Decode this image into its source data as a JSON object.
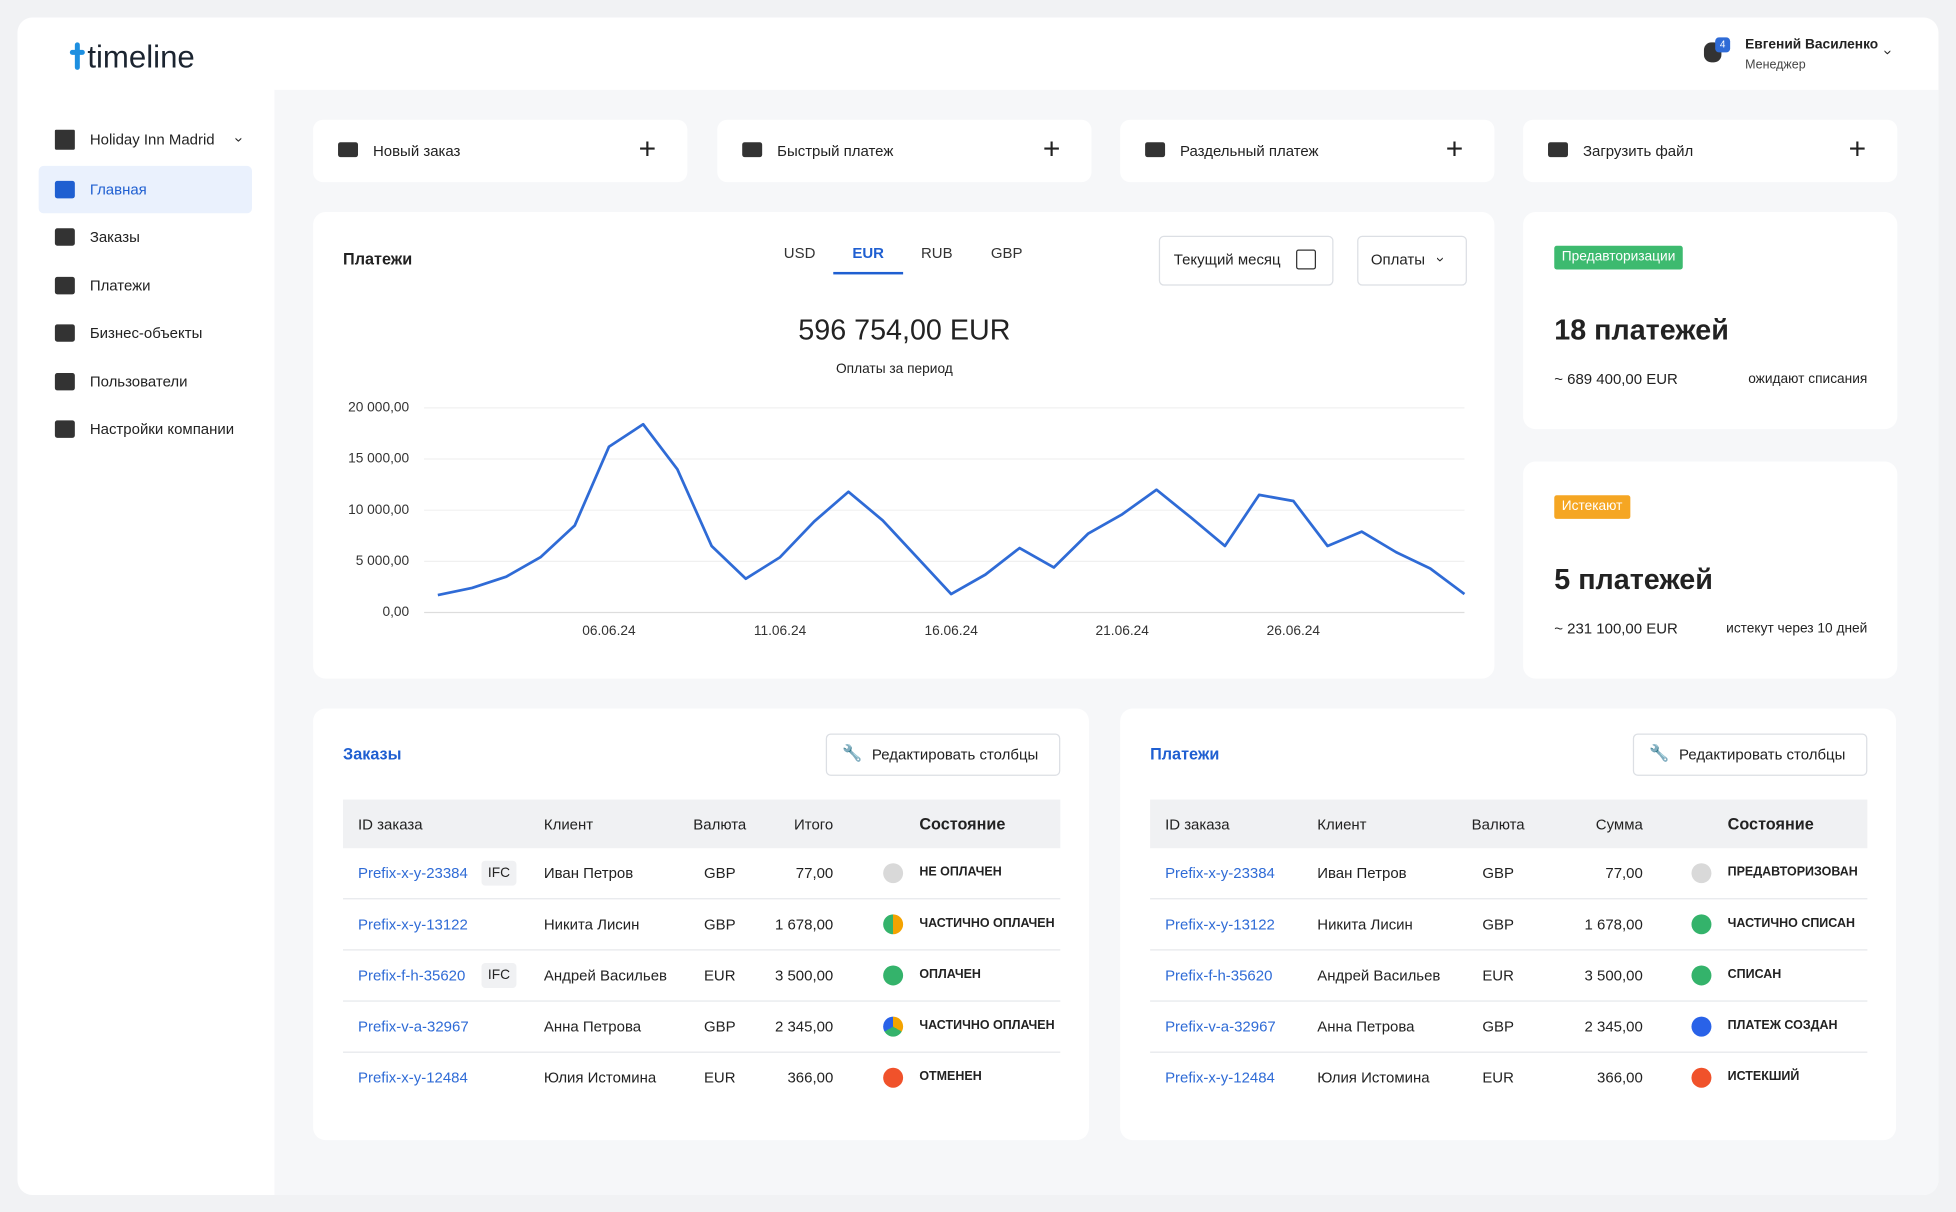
{
  "logo": "timeline",
  "user": {
    "name": "Евгений Василенко",
    "role": "Менеджер",
    "notifications": "4"
  },
  "sidebar": {
    "hotel": "Holiday Inn Madrid",
    "items": [
      "Главная",
      "Заказы",
      "Платежи",
      "Бизнес-объекты",
      "Пользователи",
      "Настройки компании"
    ],
    "active": 0
  },
  "actions": [
    "Новый заказ",
    "Быстрый платеж",
    "Раздельный платеж",
    "Загрузить файл"
  ],
  "payments_panel": {
    "title": "Платежи",
    "currencies": [
      "USD",
      "EUR",
      "RUB",
      "GBP"
    ],
    "active_currency": 1,
    "period": "Текущий месяц",
    "filter": "Оплаты",
    "total": "596 754,00 EUR",
    "total_caption": "Оплаты за период"
  },
  "chart_data": {
    "type": "line",
    "color": "#2f6bd6",
    "grid": true,
    "categories": [
      null,
      null,
      null,
      null,
      null,
      "06.06.24",
      null,
      null,
      null,
      null,
      "11.06.24",
      null,
      null,
      null,
      null,
      "16.06.24",
      null,
      null,
      null,
      null,
      "21.06.24",
      null,
      null,
      null,
      null,
      "26.06.24",
      null,
      null,
      null,
      null,
      null
    ],
    "values": [
      1700,
      2400,
      3500,
      5400,
      8500,
      16200,
      18400,
      14000,
      6500,
      3300,
      5400,
      8900,
      11800,
      9000,
      5400,
      1800,
      3700,
      6300,
      4400,
      7700,
      9600,
      12000,
      9300,
      6500,
      11500,
      10900,
      6500,
      7900,
      5900,
      4300,
      1800
    ],
    "ylim": [
      0,
      20000
    ],
    "yticks": [
      {
        "value": 0,
        "label": "0,00"
      },
      {
        "value": 5000,
        "label": "5 000,00"
      },
      {
        "value": 10000,
        "label": "10 000,00"
      },
      {
        "value": 15000,
        "label": "15 000,00"
      },
      {
        "value": 20000,
        "label": "20 000,00"
      }
    ]
  },
  "cards": [
    {
      "badge": "Предавторизации",
      "badge_color": "#3dba6f",
      "count": "18 платежей",
      "amount": "~ 689 400,00 EUR",
      "note": "ожидают списания"
    },
    {
      "badge": "Истекают",
      "badge_color": "#f5a623",
      "count": "5 платежей",
      "amount": "~ 231 100,00 EUR",
      "note": "истекут через 10 дней"
    }
  ],
  "orders_table": {
    "title": "Заказы",
    "edit": "Редактировать столбцы",
    "columns": [
      "ID заказа",
      "Клиент",
      "Валюта",
      "Итого",
      "Состояние"
    ],
    "rows": [
      {
        "id": "Prefix-x-y-23384",
        "tag": "IFC",
        "client": "Иван Петров",
        "currency": "GBP",
        "total": "77,00",
        "status": "НЕ ОПЛАЧЕН",
        "dot": [
          "#d9d9d9"
        ]
      },
      {
        "id": "Prefix-x-y-13122",
        "client": "Никита Лисин",
        "currency": "GBP",
        "total": "1 678,00",
        "status": "ЧАСТИЧНО ОПЛАЧЕН",
        "dot": [
          "#f4a300",
          "#34b36b"
        ]
      },
      {
        "id": "Prefix-f-h-35620",
        "tag": "IFC",
        "client": "Андрей Васильев",
        "currency": "EUR",
        "total": "3 500,00",
        "status": "ОПЛАЧЕН",
        "dot": [
          "#34b36b"
        ]
      },
      {
        "id": "Prefix-v-a-32967",
        "client": "Анна Петрова",
        "currency": "GBP",
        "total": "2 345,00",
        "status": "ЧАСТИЧНО ОПЛАЧЕН",
        "dot": [
          "#f4a300",
          "#34b36b",
          "#2962e8"
        ]
      },
      {
        "id": "Prefix-x-y-12484",
        "client": "Юлия Истомина",
        "currency": "EUR",
        "total": "366,00",
        "status": "ОТМЕНЕН",
        "dot": [
          "#f0522b"
        ]
      }
    ]
  },
  "payments_table": {
    "title": "Платежи",
    "edit": "Редактировать столбцы",
    "columns": [
      "ID заказа",
      "Клиент",
      "Валюта",
      "Сумма",
      "Состояние"
    ],
    "rows": [
      {
        "id": "Prefix-x-y-23384",
        "client": "Иван Петров",
        "currency": "GBP",
        "total": "77,00",
        "status": "ПРЕДАВТОРИЗОВАН",
        "dot": [
          "#d9d9d9"
        ]
      },
      {
        "id": "Prefix-x-y-13122",
        "client": "Никита Лисин",
        "currency": "GBP",
        "total": "1 678,00",
        "status": "ЧАСТИЧНО СПИСАН",
        "dot": [
          "#34b36b"
        ]
      },
      {
        "id": "Prefix-f-h-35620",
        "client": "Андрей Васильев",
        "currency": "EUR",
        "total": "3 500,00",
        "status": "СПИСАН",
        "dot": [
          "#34b36b"
        ]
      },
      {
        "id": "Prefix-v-a-32967",
        "client": "Анна Петрова",
        "currency": "GBP",
        "total": "2 345,00",
        "status": "ПЛАТЕЖ СОЗДАН",
        "dot": [
          "#2962e8"
        ]
      },
      {
        "id": "Prefix-x-y-12484",
        "client": "Юлия Истомина",
        "currency": "EUR",
        "total": "366,00",
        "status": "ИСТЕКШИЙ",
        "dot": [
          "#f0522b"
        ]
      }
    ]
  }
}
